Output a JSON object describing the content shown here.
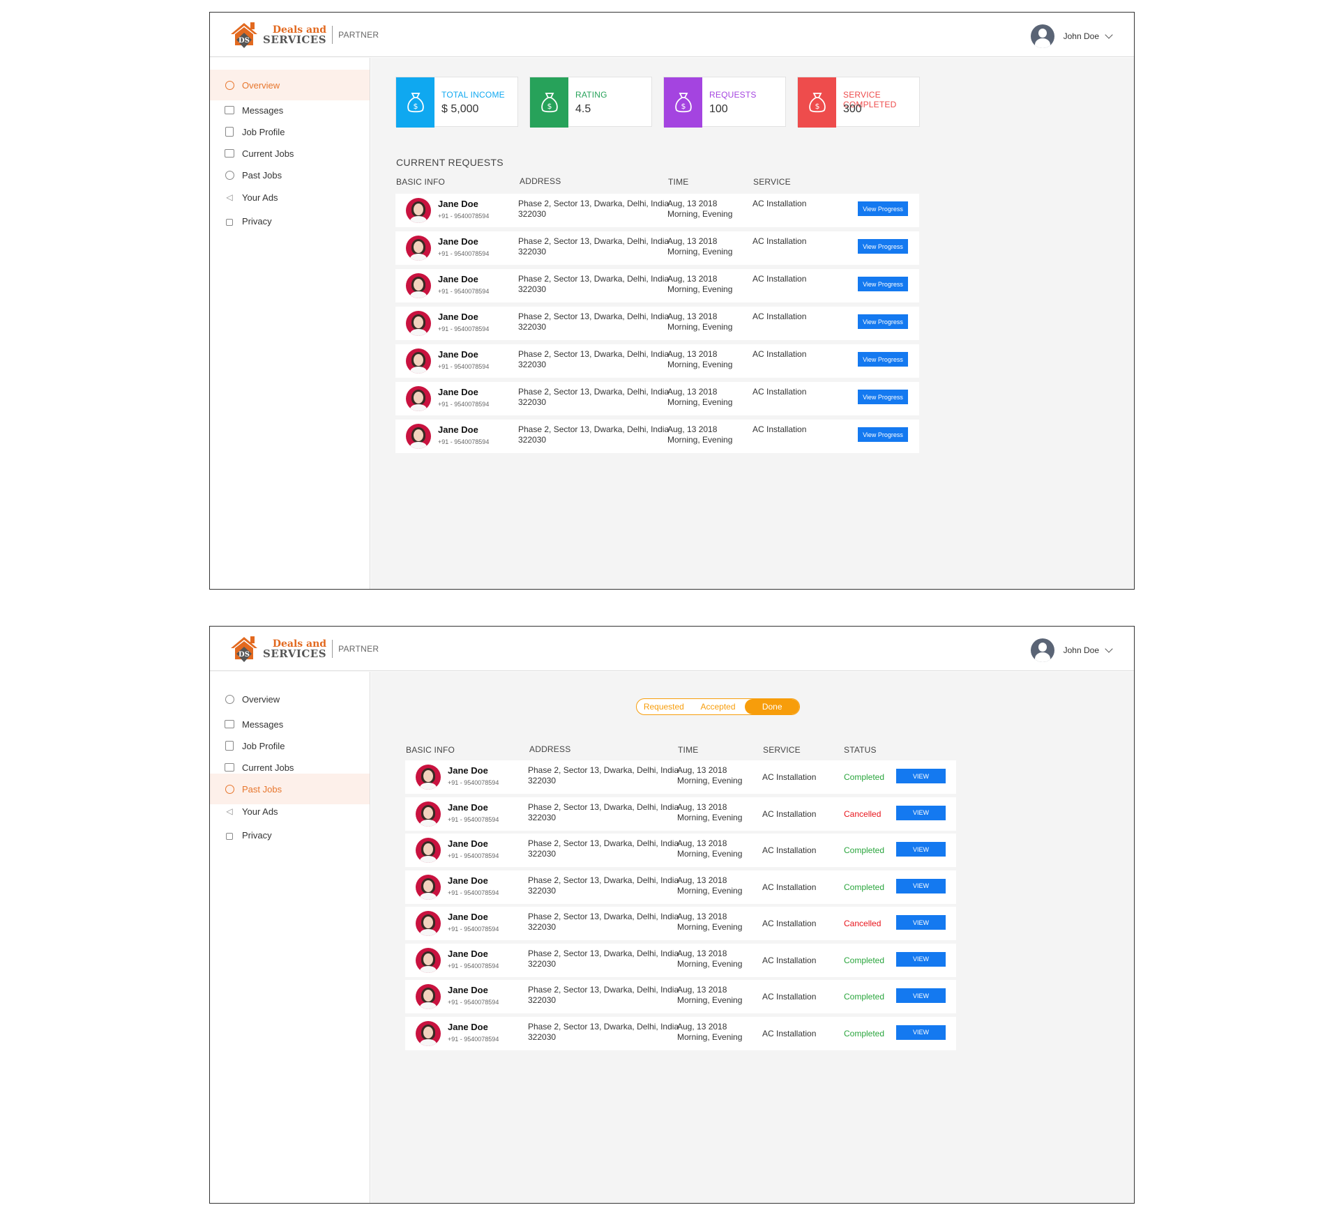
{
  "brand": {
    "line1": "Deals and",
    "line2": "SERVICES",
    "mark_letters": "DS",
    "partner": "PARTNER"
  },
  "user": {
    "name": "John Doe"
  },
  "sidebar": {
    "items": [
      {
        "label": "Overview",
        "icon": "gauge-icon"
      },
      {
        "label": "Messages",
        "icon": "image-icon"
      },
      {
        "label": "Job Profile",
        "icon": "document-icon"
      },
      {
        "label": "Current Jobs",
        "icon": "calendar-icon"
      },
      {
        "label": "Past Jobs",
        "icon": "history-icon"
      },
      {
        "label": "Your Ads",
        "icon": "megaphone-icon"
      },
      {
        "label": "Privacy",
        "icon": "lock-icon"
      }
    ]
  },
  "overview": {
    "stats": [
      {
        "title": "TOTAL INCOME",
        "value": "$ 5,000",
        "color": "#0fa8f0",
        "icon": "money-bag-icon"
      },
      {
        "title": "RATING",
        "value": "4.5",
        "color": "#27a25a",
        "icon": "money-bag-icon"
      },
      {
        "title": "REQUESTS",
        "value": "100",
        "color": "#a444e0",
        "icon": "money-bag-icon"
      },
      {
        "title": "SERVICE COMPLETED",
        "value": "300",
        "color": "#ee4c4c",
        "icon": "money-bag-icon"
      }
    ],
    "section_title": "CURRENT REQUESTS",
    "columns": {
      "basic_info": "BASIC INFO",
      "address": "ADDRESS",
      "time": "TIME",
      "service": "SERVICE"
    },
    "button_label": "View Progress",
    "rows": [
      {
        "name": "Jane Doe",
        "phone": "+91 - 9540078594",
        "address_line1": "Phase 2, Sector 13, Dwarka, Delhi, India",
        "address_line2": "322030",
        "date": "Aug, 13 2018",
        "slot": "Morning, Evening",
        "service": "AC Installation"
      },
      {
        "name": "Jane Doe",
        "phone": "+91 - 9540078594",
        "address_line1": "Phase 2, Sector 13, Dwarka, Delhi, India",
        "address_line2": "322030",
        "date": "Aug, 13 2018",
        "slot": "Morning, Evening",
        "service": "AC Installation"
      },
      {
        "name": "Jane Doe",
        "phone": "+91 - 9540078594",
        "address_line1": "Phase 2, Sector 13, Dwarka, Delhi, India",
        "address_line2": "322030",
        "date": "Aug, 13 2018",
        "slot": "Morning, Evening",
        "service": "AC Installation"
      },
      {
        "name": "Jane Doe",
        "phone": "+91 - 9540078594",
        "address_line1": "Phase 2, Sector 13, Dwarka, Delhi, India",
        "address_line2": "322030",
        "date": "Aug, 13 2018",
        "slot": "Morning, Evening",
        "service": "AC Installation"
      },
      {
        "name": "Jane Doe",
        "phone": "+91 - 9540078594",
        "address_line1": "Phase 2, Sector 13, Dwarka, Delhi, India",
        "address_line2": "322030",
        "date": "Aug, 13 2018",
        "slot": "Morning, Evening",
        "service": "AC Installation"
      },
      {
        "name": "Jane Doe",
        "phone": "+91 - 9540078594",
        "address_line1": "Phase 2, Sector 13, Dwarka, Delhi, India",
        "address_line2": "322030",
        "date": "Aug, 13 2018",
        "slot": "Morning, Evening",
        "service": "AC Installation"
      },
      {
        "name": "Jane Doe",
        "phone": "+91 - 9540078594",
        "address_line1": "Phase 2, Sector 13, Dwarka, Delhi, India",
        "address_line2": "322030",
        "date": "Aug, 13 2018",
        "slot": "Morning, Evening",
        "service": "AC Installation"
      }
    ]
  },
  "past_jobs": {
    "tabs": [
      {
        "label": "Requested"
      },
      {
        "label": "Accepted"
      },
      {
        "label": "Done"
      }
    ],
    "active_tab": 2,
    "columns": {
      "basic_info": "BASIC INFO",
      "address": "ADDRESS",
      "time": "TIME",
      "service": "SERVICE",
      "status": "STATUS"
    },
    "button_label": "VIEW",
    "status_colors": {
      "Completed": "#2aa53d",
      "Cancelled": "#e8141b"
    },
    "rows": [
      {
        "name": "Jane Doe",
        "phone": "+91 - 9540078594",
        "address_line1": "Phase 2, Sector 13, Dwarka, Delhi, India",
        "address_line2": "322030",
        "date": "Aug, 13 2018",
        "slot": "Morning, Evening",
        "service": "AC Installation",
        "status": "Completed"
      },
      {
        "name": "Jane Doe",
        "phone": "+91 - 9540078594",
        "address_line1": "Phase 2, Sector 13, Dwarka, Delhi, India",
        "address_line2": "322030",
        "date": "Aug, 13 2018",
        "slot": "Morning, Evening",
        "service": "AC Installation",
        "status": "Cancelled"
      },
      {
        "name": "Jane Doe",
        "phone": "+91 - 9540078594",
        "address_line1": "Phase 2, Sector 13, Dwarka, Delhi, India",
        "address_line2": "322030",
        "date": "Aug, 13 2018",
        "slot": "Morning, Evening",
        "service": "AC Installation",
        "status": "Completed"
      },
      {
        "name": "Jane Doe",
        "phone": "+91 - 9540078594",
        "address_line1": "Phase 2, Sector 13, Dwarka, Delhi, India",
        "address_line2": "322030",
        "date": "Aug, 13 2018",
        "slot": "Morning, Evening",
        "service": "AC Installation",
        "status": "Completed"
      },
      {
        "name": "Jane Doe",
        "phone": "+91 - 9540078594",
        "address_line1": "Phase 2, Sector 13, Dwarka, Delhi, India",
        "address_line2": "322030",
        "date": "Aug, 13 2018",
        "slot": "Morning, Evening",
        "service": "AC Installation",
        "status": "Cancelled"
      },
      {
        "name": "Jane Doe",
        "phone": "+91 - 9540078594",
        "address_line1": "Phase 2, Sector 13, Dwarka, Delhi, India",
        "address_line2": "322030",
        "date": "Aug, 13 2018",
        "slot": "Morning, Evening",
        "service": "AC Installation",
        "status": "Completed"
      },
      {
        "name": "Jane Doe",
        "phone": "+91 - 9540078594",
        "address_line1": "Phase 2, Sector 13, Dwarka, Delhi, India",
        "address_line2": "322030",
        "date": "Aug, 13 2018",
        "slot": "Morning, Evening",
        "service": "AC Installation",
        "status": "Completed"
      },
      {
        "name": "Jane Doe",
        "phone": "+91 - 9540078594",
        "address_line1": "Phase 2, Sector 13, Dwarka, Delhi, India",
        "address_line2": "322030",
        "date": "Aug, 13 2018",
        "slot": "Morning, Evening",
        "service": "AC Installation",
        "status": "Completed"
      }
    ]
  }
}
